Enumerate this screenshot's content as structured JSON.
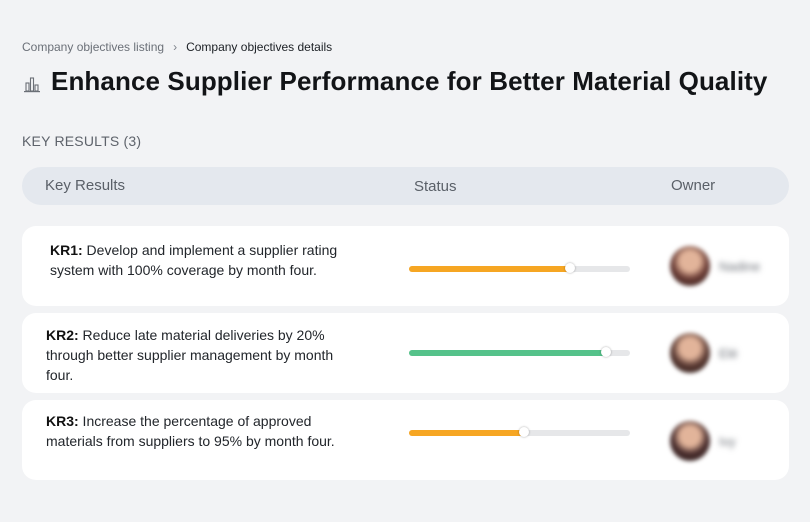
{
  "breadcrumb": {
    "parent": "Company objectives listing",
    "separator": "›",
    "current": "Company objectives details"
  },
  "objective": {
    "title": "Enhance Supplier Performance for Better Material Quality",
    "icon": "building-chart-icon"
  },
  "section": {
    "label": "KEY RESULTS (3)"
  },
  "table": {
    "headers": {
      "key_results": "Key Results",
      "status": "Status",
      "owner": "Owner"
    }
  },
  "key_results": [
    {
      "code": "KR1:",
      "text": " Develop and implement a supplier rating system with 100% coverage by month four.",
      "progress": 0.73,
      "color": "#f6a623",
      "owner": "Nadine",
      "avatar_color": "#6b3d36"
    },
    {
      "code": "KR2:",
      "text": " Reduce late material deliveries by 20% through better supplier management by month four.",
      "progress": 0.89,
      "color": "#55c28a",
      "owner": "Elé",
      "avatar_color": "#5a3a33"
    },
    {
      "code": "KR3:",
      "text": " Increase the percentage of approved materials from suppliers to 95% by month four.",
      "progress": 0.52,
      "color": "#f6a623",
      "owner": "Ivy",
      "avatar_color": "#4a2e2e"
    }
  ]
}
